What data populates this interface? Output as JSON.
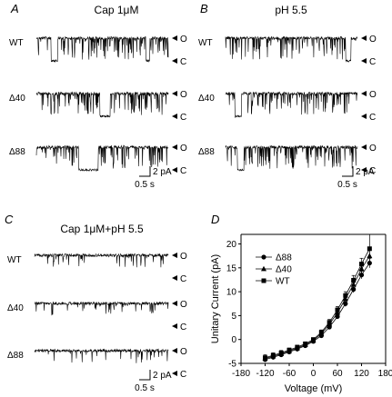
{
  "chart_data": [
    {
      "type": "traces",
      "panel_label": "A",
      "title": "Cap 1μM",
      "open_label": "O",
      "closed_label": "C",
      "traces": [
        {
          "name": "WT",
          "closed_spans": [
            [
              0.11,
              0.16
            ],
            [
              0.83,
              0.86
            ]
          ]
        },
        {
          "name": "Δ40",
          "closed_spans": [
            [
              0.48,
              0.56
            ]
          ]
        },
        {
          "name": "Δ88",
          "closed_spans": [
            [
              0.32,
              0.47
            ]
          ]
        }
      ],
      "scale_bar": {
        "current": "2 pA",
        "time": "0.5 s"
      }
    },
    {
      "type": "traces",
      "panel_label": "B",
      "title": "pH 5.5",
      "open_label": "O",
      "closed_label": "C",
      "traces": [
        {
          "name": "WT",
          "closed_spans": [
            [
              0.91,
              0.95
            ]
          ]
        },
        {
          "name": "Δ40",
          "closed_spans": [
            [
              0.07,
              0.12
            ]
          ]
        },
        {
          "name": "Δ88",
          "closed_spans": [
            [
              0.09,
              0.14
            ]
          ]
        }
      ],
      "scale_bar": {
        "current": "2 pA",
        "time": "0.5 s"
      }
    },
    {
      "type": "traces",
      "panel_label": "C",
      "title": "Cap 1μM+pH 5.5",
      "open_label": "O",
      "closed_label": "C",
      "traces": [
        {
          "name": "WT",
          "closed_spans": []
        },
        {
          "name": "Δ40",
          "closed_spans": []
        },
        {
          "name": "Δ88",
          "closed_spans": []
        }
      ],
      "scale_bar": {
        "current": "2 pA",
        "time": "0.5 s"
      }
    },
    {
      "type": "line",
      "panel_label": "D",
      "xlabel": "Voltage (mV)",
      "ylabel": "Unitary Current (pA)",
      "xlim": [
        -180,
        180
      ],
      "ylim": [
        -5,
        22
      ],
      "xticks": [
        -180,
        -120,
        -60,
        0,
        60,
        120,
        180
      ],
      "yticks": [
        -5,
        0,
        5,
        10,
        15,
        20
      ],
      "x": [
        -120,
        -100,
        -80,
        -60,
        -40,
        -20,
        0,
        20,
        40,
        60,
        80,
        100,
        120,
        140
      ],
      "series": [
        {
          "name": "Δ88",
          "marker": "circle",
          "values": [
            -4.2,
            -3.7,
            -3.2,
            -2.6,
            -2.0,
            -1.3,
            -0.4,
            0.8,
            2.6,
            4.8,
            7.5,
            10.5,
            13.5,
            16.0
          ],
          "errors": [
            0.5,
            0.5,
            0.4,
            0.4,
            0.4,
            0.4,
            0.3,
            0.4,
            0.4,
            0.5,
            0.6,
            0.7,
            0.8,
            1.0
          ]
        },
        {
          "name": "Δ40",
          "marker": "triangle",
          "values": [
            -4.0,
            -3.5,
            -3.0,
            -2.4,
            -1.8,
            -1.1,
            -0.2,
            1.2,
            3.2,
            5.6,
            8.5,
            11.5,
            14.8,
            17.5
          ],
          "errors": [
            0.5,
            0.5,
            0.4,
            0.4,
            0.4,
            0.4,
            0.3,
            0.4,
            0.5,
            0.6,
            0.7,
            0.8,
            0.9,
            1.2
          ]
        },
        {
          "name": "WT",
          "marker": "square",
          "values": [
            -3.8,
            -3.3,
            -2.8,
            -2.2,
            -1.6,
            -0.9,
            0.0,
            1.5,
            3.6,
            6.2,
            9.2,
            12.4,
            15.8,
            19.0
          ],
          "errors": [
            0.6,
            0.5,
            0.5,
            0.4,
            0.4,
            0.4,
            0.3,
            0.5,
            0.6,
            0.7,
            0.8,
            1.0,
            1.2,
            3.0
          ]
        }
      ],
      "legend": "top-left",
      "grid": false
    }
  ]
}
